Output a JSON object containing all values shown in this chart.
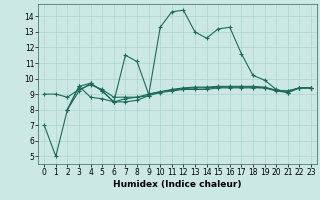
{
  "xlabel": "Humidex (Indice chaleur)",
  "bg_color": "#cce8e4",
  "grid_color": "#aad4cc",
  "line_color": "#1a6b5a",
  "xlim": [
    -0.5,
    23.5
  ],
  "ylim": [
    4.5,
    14.8
  ],
  "xticks": [
    0,
    1,
    2,
    3,
    4,
    5,
    6,
    7,
    8,
    9,
    10,
    11,
    12,
    13,
    14,
    15,
    16,
    17,
    18,
    19,
    20,
    21,
    22,
    23
  ],
  "yticks": [
    5,
    6,
    7,
    8,
    9,
    10,
    11,
    12,
    13,
    14
  ],
  "line1_x": [
    0,
    1,
    2,
    3,
    4,
    5,
    6,
    7,
    8,
    9,
    10,
    11,
    12,
    13,
    14,
    15,
    16,
    17,
    18,
    19,
    20,
    21,
    22,
    23
  ],
  "line1_y": [
    7.0,
    5.0,
    8.0,
    9.5,
    8.8,
    8.7,
    8.5,
    8.5,
    8.6,
    8.9,
    13.3,
    14.3,
    14.4,
    13.0,
    12.6,
    13.2,
    13.3,
    11.6,
    10.2,
    9.9,
    9.3,
    9.1,
    9.4,
    9.4
  ],
  "line2_x": [
    0,
    1,
    2,
    3,
    4,
    5,
    6,
    7,
    8,
    9,
    10,
    11,
    12,
    13,
    14,
    15,
    16,
    17,
    18,
    19,
    20,
    21,
    22,
    23
  ],
  "line2_y": [
    9.0,
    9.0,
    8.8,
    9.3,
    9.6,
    9.3,
    8.8,
    8.8,
    8.8,
    8.9,
    9.1,
    9.2,
    9.3,
    9.3,
    9.3,
    9.4,
    9.4,
    9.4,
    9.4,
    9.4,
    9.2,
    9.1,
    9.4,
    9.4
  ],
  "line3_x": [
    2,
    3,
    4,
    5,
    6,
    7,
    8,
    9,
    10,
    11,
    12,
    13,
    14,
    15,
    16,
    17,
    18,
    19,
    20,
    21,
    22,
    23
  ],
  "line3_y": [
    8.0,
    9.2,
    9.7,
    9.2,
    8.5,
    8.7,
    8.8,
    9.0,
    9.15,
    9.25,
    9.35,
    9.4,
    9.4,
    9.45,
    9.45,
    9.45,
    9.45,
    9.4,
    9.25,
    9.2,
    9.4,
    9.4
  ],
  "line4_x": [
    2,
    3,
    4,
    5,
    6,
    7,
    8,
    9,
    10,
    11,
    12,
    13,
    14,
    15,
    16,
    17,
    18,
    19,
    20,
    21,
    22,
    23
  ],
  "line4_y": [
    8.0,
    9.5,
    9.7,
    9.2,
    8.5,
    11.5,
    11.1,
    9.0,
    9.15,
    9.3,
    9.4,
    9.45,
    9.45,
    9.5,
    9.5,
    9.5,
    9.5,
    9.45,
    9.25,
    9.2,
    9.4,
    9.4
  ]
}
